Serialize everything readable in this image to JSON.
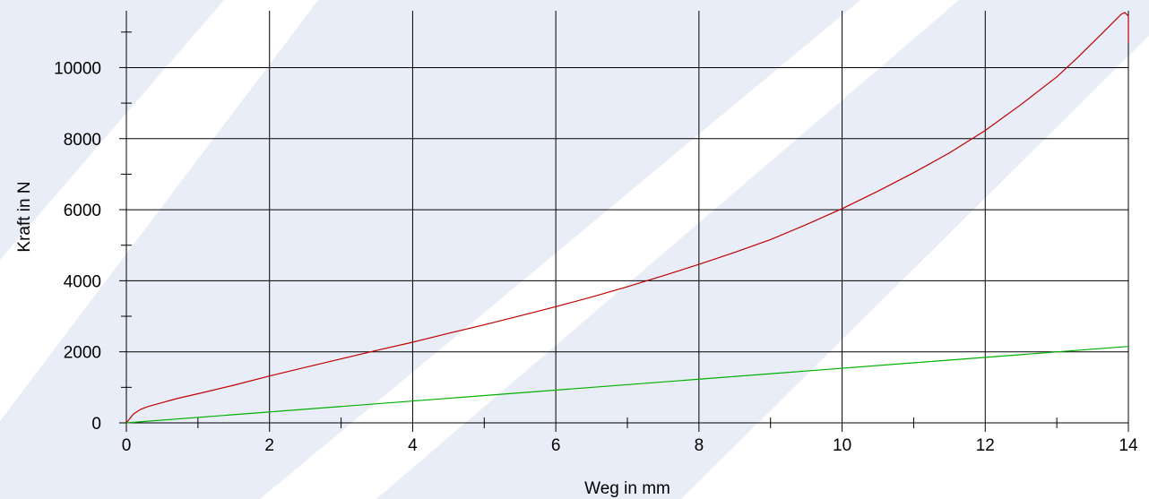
{
  "chart_data": {
    "type": "line",
    "xlabel": "Weg in mm",
    "ylabel": "Kraft in N",
    "xlim": [
      0,
      14
    ],
    "ylim": [
      0,
      11600
    ],
    "xticks": [
      0,
      2,
      4,
      6,
      8,
      10,
      12,
      14
    ],
    "xtick_labels": [
      "0",
      "2",
      "4",
      "6",
      "8",
      "10",
      "12",
      "14"
    ],
    "yticks": [
      0,
      2000,
      4000,
      6000,
      8000,
      10000
    ],
    "ytick_labels": [
      "0",
      "2000",
      "4000",
      "6000",
      "8000",
      "10000"
    ],
    "x_minor_step": 1,
    "y_minor_step": 1000,
    "grid": true,
    "legend": "none",
    "series": [
      {
        "color": "#c00000",
        "x": [
          0,
          0.1,
          0.2,
          0.3,
          0.5,
          0.7,
          1,
          1.5,
          2,
          2.5,
          3,
          3.5,
          4,
          4.5,
          5,
          5.5,
          6,
          6.5,
          7,
          7.5,
          8,
          8.5,
          9,
          9.5,
          10,
          10.5,
          11,
          11.5,
          12,
          12.5,
          13,
          13.3,
          13.6,
          13.8,
          13.9,
          13.95,
          14,
          14
        ],
        "y": [
          0,
          250,
          380,
          460,
          570,
          680,
          820,
          1060,
          1320,
          1560,
          1800,
          2040,
          2270,
          2520,
          2760,
          3010,
          3270,
          3540,
          3830,
          4140,
          4460,
          4800,
          5160,
          5580,
          6030,
          6520,
          7040,
          7600,
          8230,
          8960,
          9740,
          10300,
          10900,
          11300,
          11500,
          11550,
          11450,
          10700
        ]
      },
      {
        "color": "#00b000",
        "x": [
          0,
          14
        ],
        "y": [
          0,
          2150
        ]
      }
    ]
  }
}
